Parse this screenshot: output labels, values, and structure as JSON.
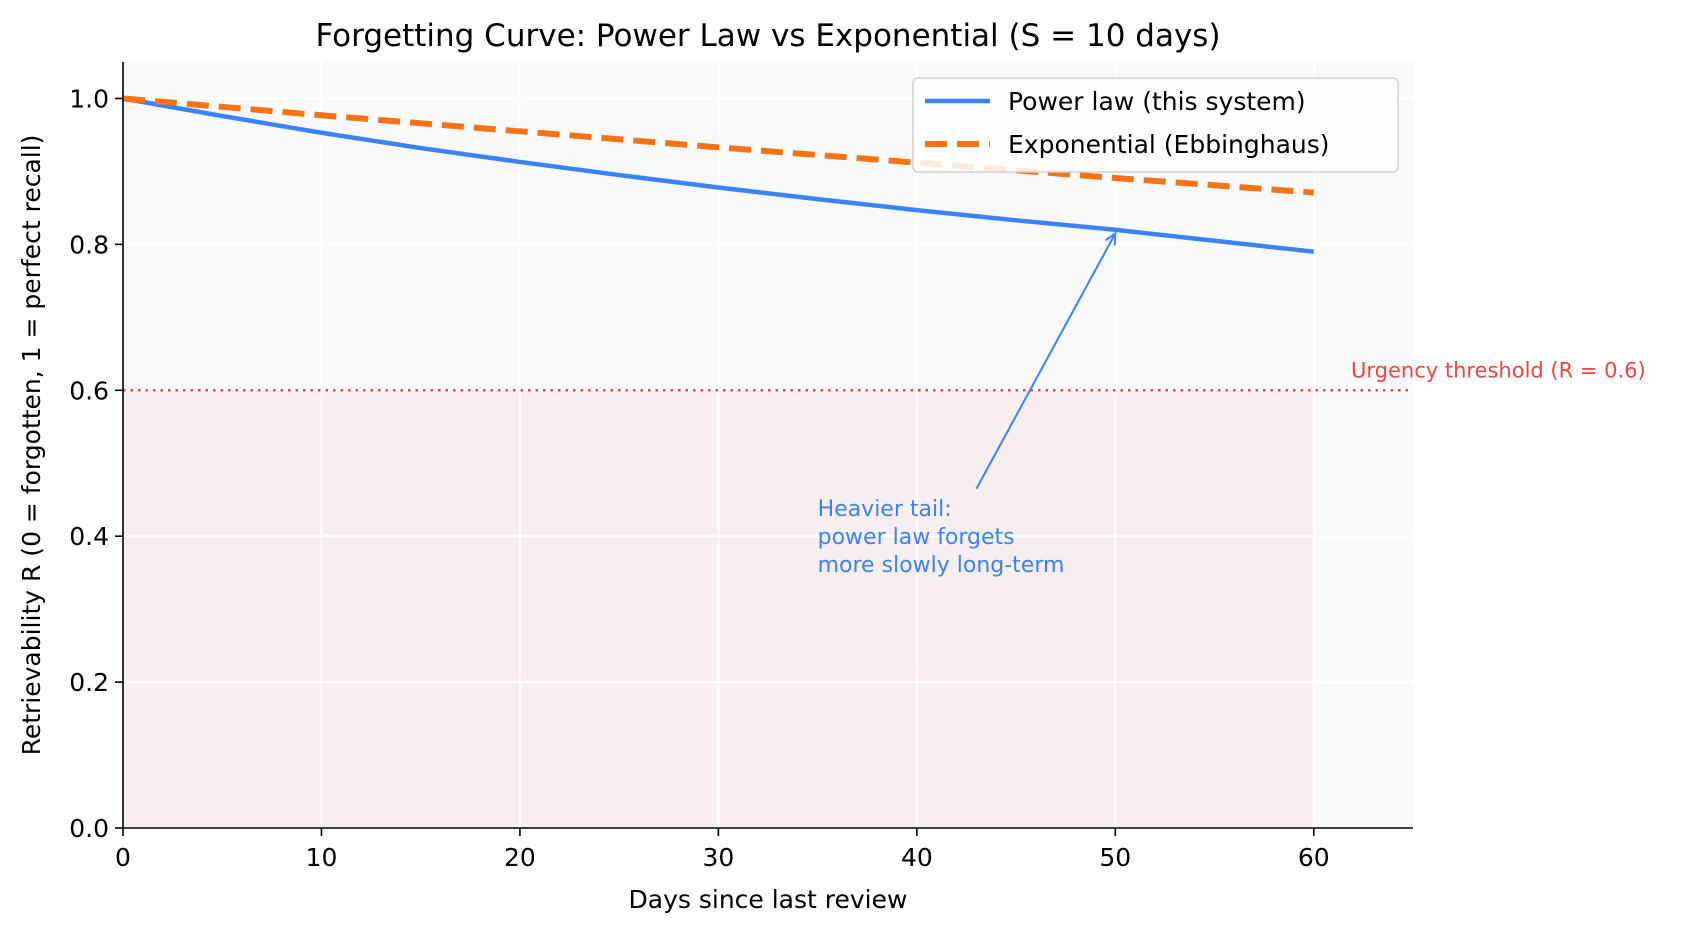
{
  "chart_data": {
    "type": "line",
    "title": "Forgetting Curve: Power Law vs Exponential  (S = 10 days)",
    "xlabel": "Days since last review",
    "ylabel": "Retrievability R  (0 = forgotten, 1 = perfect recall)",
    "xlim": [
      0,
      65
    ],
    "ylim": [
      0,
      1.05
    ],
    "xticks": [
      0,
      10,
      20,
      30,
      40,
      50,
      60
    ],
    "yticks": [
      0.0,
      0.2,
      0.4,
      0.6,
      0.8,
      1.0
    ],
    "xtick_labels": [
      "0",
      "10",
      "20",
      "30",
      "40",
      "50",
      "60"
    ],
    "ytick_labels": [
      "0.0",
      "0.2",
      "0.4",
      "0.6",
      "0.8",
      "1.0"
    ],
    "grid": true,
    "legend_position": "top-right",
    "series": [
      {
        "name": "Power law (this system)",
        "color": "#3b82f6",
        "style": "solid",
        "x": [
          0,
          5,
          10,
          15,
          20,
          25,
          30,
          35,
          40,
          45,
          50,
          55,
          60
        ],
        "values": [
          1.0,
          0.976,
          0.953,
          0.932,
          0.913,
          0.895,
          0.878,
          0.862,
          0.847,
          0.833,
          0.82,
          0.805,
          0.79
        ]
      },
      {
        "name": "Exponential (Ebbinghaus)",
        "color": "#f97316",
        "style": "dashed",
        "x": [
          0,
          10,
          20,
          30,
          40,
          50,
          60
        ],
        "values": [
          1.0,
          0.977,
          0.955,
          0.933,
          0.912,
          0.891,
          0.871
        ]
      }
    ],
    "threshold": {
      "value": 0.6,
      "label": "Urgency threshold (R = 0.6)",
      "color": "#ef4444"
    },
    "shaded_region": {
      "x_range": [
        0,
        60
      ],
      "y_range": [
        0,
        0.6
      ],
      "color": "#f7eeef"
    },
    "annotation": {
      "lines": [
        "Heavier tail:",
        "power law forgets",
        "more slowly long-term"
      ],
      "color": "#3b82f6",
      "text_at": [
        35,
        0.44
      ],
      "arrow_from": [
        43,
        0.465
      ],
      "arrow_to": [
        50,
        0.815
      ]
    }
  }
}
